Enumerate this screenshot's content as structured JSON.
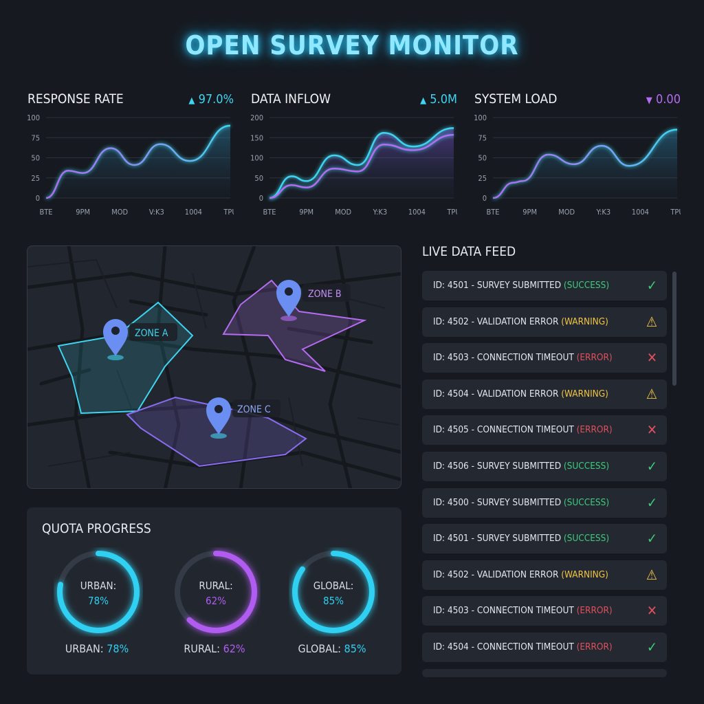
{
  "title": "OPEN SURVEY MONITOR",
  "colors": {
    "cyan": "#3fd4f0",
    "purple": "#a86cf2",
    "success": "#3ecb7c",
    "warning": "#f3c545",
    "error": "#e0505c",
    "panel": "#22272f"
  },
  "charts": [
    {
      "title": "RESPONSE RATE",
      "delta": "97.0%",
      "direction": "up",
      "delta_color": "#3fd4f0",
      "type": "area",
      "categories": [
        "BTE",
        "9PM",
        "MOD",
        "V:K3",
        "1004",
        "TPU"
      ],
      "yticks": [
        "0",
        "25",
        "50",
        "75",
        "100"
      ],
      "ylim": [
        0,
        100
      ],
      "series": [
        {
          "x": [
            0,
            0.6,
            1,
            1.75,
            2.4,
            3.1,
            3.9,
            5
          ],
          "y": [
            0,
            34,
            31,
            62,
            41,
            67,
            46,
            90
          ]
        }
      ]
    },
    {
      "title": "DATA INFLOW",
      "delta": "5.0M",
      "direction": "up",
      "delta_color": "#3fd4f0",
      "type": "area",
      "categories": [
        "BTE",
        "9PM",
        "MOD",
        "Y:K3",
        "1004",
        "TPU"
      ],
      "yticks": [
        "0",
        "50",
        "100",
        "150",
        "200"
      ],
      "ylim": [
        0,
        200
      ],
      "series": [
        {
          "x": [
            0,
            0.6,
            1,
            1.75,
            2.4,
            3.1,
            3.9,
            5
          ],
          "y": [
            0,
            54,
            42,
            106,
            82,
            162,
            128,
            174
          ]
        },
        {
          "x": [
            0,
            0.6,
            1,
            1.75,
            2.4,
            3.1,
            3.9,
            5
          ],
          "y": [
            0,
            32,
            26,
            73,
            66,
            133,
            119,
            157
          ]
        }
      ]
    },
    {
      "title": "SYSTEM LOAD",
      "delta": "0.00",
      "direction": "down",
      "delta_color": "#b36cf0",
      "type": "area",
      "categories": [
        "BTE",
        "9PM",
        "MOD",
        "Y:K3",
        "1004",
        "TPU"
      ],
      "yticks": [
        "0",
        "25",
        "50",
        "75",
        "100"
      ],
      "ylim": [
        0,
        100
      ],
      "series": [
        {
          "x": [
            0,
            0.55,
            0.8,
            1.5,
            2.2,
            2.95,
            3.7,
            5
          ],
          "y": [
            0,
            19,
            21,
            54,
            42,
            65,
            40,
            85
          ]
        }
      ]
    }
  ],
  "map": {
    "zones": [
      {
        "label": "ZONE A",
        "color": "#3fd4f0"
      },
      {
        "label": "ZONE B",
        "color": "#b56cf2"
      },
      {
        "label": "ZONE C",
        "color": "#8a6cf2"
      }
    ]
  },
  "quota": {
    "title": "QUOTA PROGRESS",
    "items": [
      {
        "name": "URBAN:",
        "value": "78%",
        "label": "URBAN:",
        "fraction": 0.78,
        "color": "#2fd0f2"
      },
      {
        "name": "RURAL:",
        "value": "62%",
        "label": "RURAL:",
        "fraction": 0.62,
        "color": "#b05cf0"
      },
      {
        "name": "GLOBAL:",
        "value": "85%",
        "label": "GLOBAL:",
        "fraction": 0.85,
        "color": "#2fd0f2"
      }
    ]
  },
  "feed": {
    "title": "LIVE DATA FEED",
    "items": [
      {
        "text": "ID: 4501 - SURVEY SUBMITTED ",
        "status": "(SUCCESS)",
        "icon": "check-icon"
      },
      {
        "text": "ID: 4502 - VALIDATION ERROR ",
        "status": "(WARNING)",
        "icon": "warning-icon"
      },
      {
        "text": "ID: 4503 - CONNECTION TIMEOUT ",
        "status": "(ERROR)",
        "icon": "x-icon"
      },
      {
        "text": "ID: 4504 - VALIDATION ERROR ",
        "status": "(WARNING)",
        "icon": "warning-icon"
      },
      {
        "text": "ID: 4505 - CONNECTION TIMEOUT ",
        "status": "(ERROR)",
        "icon": "x-icon"
      },
      {
        "text": "ID: 4506 - SURVEY SUBMITTED ",
        "status": "(SUCCESS)",
        "icon": "check-icon"
      },
      {
        "text": "ID: 4500 - SURVEY SUBMITTED ",
        "status": "(SUCCESS)",
        "icon": "check-icon"
      },
      {
        "text": "ID: 4501 - SURVEY SUBMITTED ",
        "status": "(SUCCESS)",
        "icon": "check-icon"
      },
      {
        "text": "ID: 4502 - VALIDATION ERROR ",
        "status": "(WARNING)",
        "icon": "warning-icon"
      },
      {
        "text": "ID: 4503 - CONNECTION TIMEOUT ",
        "status": "(ERROR)",
        "icon": "x-icon"
      },
      {
        "text": "ID: 4504 - CONNECTION TIMEOUT ",
        "status": "(ERROR)",
        "icon": "check-icon"
      }
    ]
  }
}
